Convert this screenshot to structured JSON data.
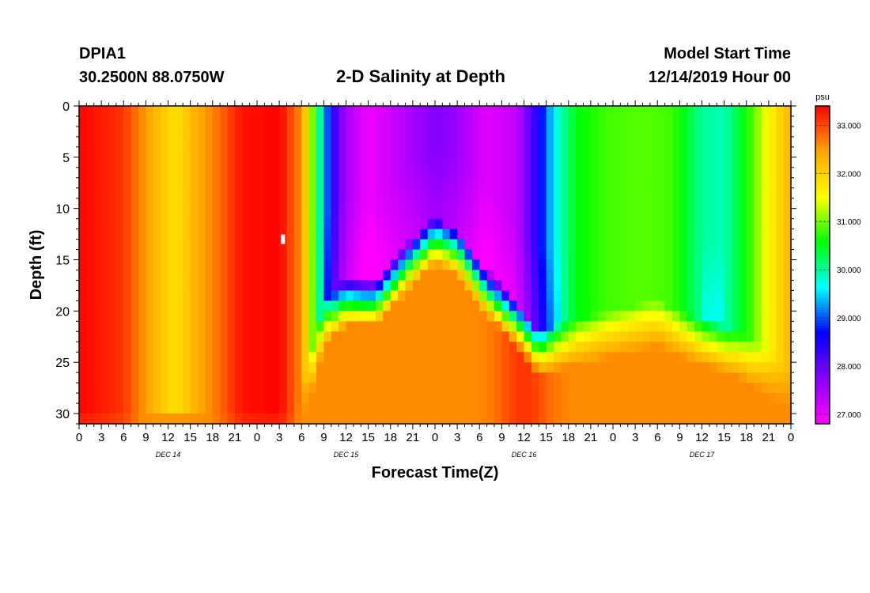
{
  "header": {
    "station": "DPIA1",
    "coords": "30.2500N 88.0750W",
    "title": "2-D Salinity at Depth",
    "model_label": "Model Start Time",
    "model_time": "12/14/2019 Hour 00"
  },
  "chart_data": {
    "type": "heatmap",
    "title": "2-D Salinity at Depth",
    "xlabel": "Forecast Time(Z)",
    "ylabel": "Depth (ft)",
    "x_range_hours": [
      0,
      96
    ],
    "y_range_ft": [
      0,
      31
    ],
    "y_ticks": [
      "0",
      "5",
      "10",
      "15",
      "20",
      "25",
      "30"
    ],
    "x_tick_labels": [
      "0",
      "3",
      "6",
      "9",
      "12",
      "15",
      "18",
      "21",
      "0",
      "3",
      "6",
      "9",
      "12",
      "15",
      "18",
      "21",
      "0",
      "3",
      "6",
      "9",
      "12",
      "15",
      "18",
      "21",
      "0",
      "3",
      "6",
      "9",
      "12",
      "15",
      "18",
      "21",
      "0"
    ],
    "day_labels": [
      "DEC 14",
      "DEC 15",
      "DEC 16",
      "DEC 17"
    ],
    "colorbar": {
      "unit": "psu",
      "min": 26.8,
      "max": 33.4,
      "tick_labels": [
        "33.000",
        "32.000",
        "31.000",
        "30.000",
        "29.000",
        "28.000",
        "27.000"
      ],
      "tick_values": [
        33,
        32,
        31,
        30,
        29,
        28,
        27
      ],
      "colors": [
        "#ff00ff",
        "#8800ff",
        "#0000ff",
        "#00ffff",
        "#00ff00",
        "#ffff00",
        "#ffa500",
        "#ff0000"
      ]
    },
    "surface_salinity": [
      {
        "hour": 0,
        "value": 33.4
      },
      {
        "hour": 6,
        "value": 33.1
      },
      {
        "hour": 10,
        "value": 32.3
      },
      {
        "hour": 13,
        "value": 31.8
      },
      {
        "hour": 15,
        "value": 32.2
      },
      {
        "hour": 19,
        "value": 32.8
      },
      {
        "hour": 22,
        "value": 33.3
      },
      {
        "hour": 27,
        "value": 33.4
      },
      {
        "hour": 30,
        "value": 32.6
      },
      {
        "hour": 32,
        "value": 30.5
      },
      {
        "hour": 34,
        "value": 28.5
      },
      {
        "hour": 36,
        "value": 27.5
      },
      {
        "hour": 39,
        "value": 26.9
      },
      {
        "hour": 43,
        "value": 27.3
      },
      {
        "hour": 48,
        "value": 27.8
      },
      {
        "hour": 51,
        "value": 27.6
      },
      {
        "hour": 55,
        "value": 27.0
      },
      {
        "hour": 59,
        "value": 27.3
      },
      {
        "hour": 62,
        "value": 28.5
      },
      {
        "hour": 64,
        "value": 29.6
      },
      {
        "hour": 67,
        "value": 30.5
      },
      {
        "hour": 71,
        "value": 30.8
      },
      {
        "hour": 76,
        "value": 30.9
      },
      {
        "hour": 80,
        "value": 30.8
      },
      {
        "hour": 84,
        "value": 30.0
      },
      {
        "hour": 87,
        "value": 29.9
      },
      {
        "hour": 90,
        "value": 30.6
      },
      {
        "hour": 93,
        "value": 31.6
      },
      {
        "hour": 96,
        "value": 32.3
      }
    ],
    "mixed_layer_depth_ft": [
      {
        "hour": 0,
        "depth": 31
      },
      {
        "hour": 29,
        "depth": 31
      },
      {
        "hour": 31,
        "depth": 26
      },
      {
        "hour": 33,
        "depth": 20
      },
      {
        "hour": 36,
        "depth": 18
      },
      {
        "hour": 40,
        "depth": 18
      },
      {
        "hour": 45,
        "depth": 14
      },
      {
        "hour": 48,
        "depth": 12
      },
      {
        "hour": 51,
        "depth": 13
      },
      {
        "hour": 55,
        "depth": 17
      },
      {
        "hour": 59,
        "depth": 20
      },
      {
        "hour": 62,
        "depth": 23
      },
      {
        "hour": 66,
        "depth": 22
      },
      {
        "hour": 72,
        "depth": 21
      },
      {
        "hour": 78,
        "depth": 20
      },
      {
        "hour": 81,
        "depth": 21
      },
      {
        "hour": 85,
        "depth": 22
      },
      {
        "hour": 89,
        "depth": 23
      },
      {
        "hour": 93,
        "depth": 25
      },
      {
        "hour": 96,
        "depth": 27
      }
    ],
    "bottom_salinity": 32.6,
    "bottom_salinity_dec16": 33.1,
    "marker": {
      "hour": 27.5,
      "depth_ft": 13
    }
  }
}
